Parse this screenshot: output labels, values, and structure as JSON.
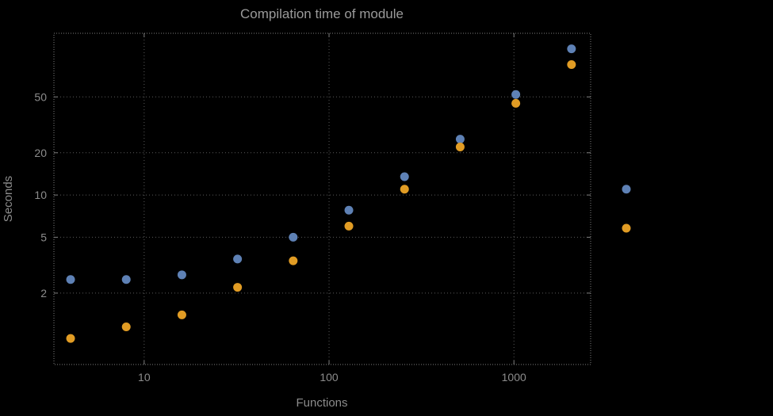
{
  "chart_data": {
    "type": "scatter",
    "title": "Compilation time of module",
    "xlabel": "Functions",
    "ylabel": "Seconds",
    "xscale": "log",
    "yscale": "log",
    "x": [
      4,
      8,
      16,
      32,
      64,
      128,
      256,
      512,
      1024,
      2048
    ],
    "series": [
      {
        "name": "blue",
        "color": "#5E81B5",
        "values": [
          2.5,
          2.5,
          2.7,
          3.5,
          5.0,
          7.8,
          13.5,
          25,
          52,
          110
        ]
      },
      {
        "name": "orange",
        "color": "#E19C24",
        "values": [
          0.95,
          1.15,
          1.4,
          2.2,
          3.4,
          6.0,
          11,
          22,
          45,
          85
        ]
      }
    ],
    "x_ticks": [
      10,
      100,
      1000
    ],
    "y_ticks": [
      2,
      5,
      10,
      20,
      50
    ],
    "xlim": [
      3.25,
      2600
    ],
    "ylim": [
      0.62,
      142
    ],
    "grid": true,
    "legend": {
      "position": "right-of-frame",
      "items": [
        {
          "series": "blue",
          "color": "#5E81B5",
          "y_value": 11
        },
        {
          "series": "orange",
          "color": "#E19C24",
          "y_value": 5.8
        }
      ]
    },
    "colors": {
      "background": "#000000",
      "title_text": "#9a9a9a",
      "text": "#8c8c8c",
      "grid": "#5a5a5a",
      "frame": "#7e7e7e"
    }
  }
}
